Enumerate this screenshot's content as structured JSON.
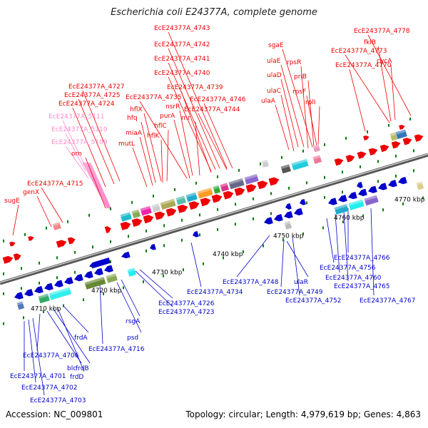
{
  "header": {
    "title": "Escherichia coli E24377A, complete genome"
  },
  "footer": {
    "accession": "Accession: NC_009801",
    "topology": "Topology: circular; Length: 4,979,619 bp; Genes: 4,863"
  },
  "colors": {
    "forward": "#ee0000",
    "reverse": "#0000cc",
    "pseudo": "#ff88cc",
    "backbone": "#8a8a8a",
    "ticks": "#0a7a0a"
  },
  "axis": {
    "ticks": [
      {
        "label": "4710 kbp"
      },
      {
        "label": "4720 kbp"
      },
      {
        "label": "4730 kbp"
      },
      {
        "label": "4740 kbp"
      },
      {
        "label": "4750 kbp"
      },
      {
        "label": "4760 kbp"
      },
      {
        "label": "4770 kbp"
      }
    ]
  },
  "labels": {
    "forward": [
      "sugE",
      "genX",
      "EcE24377A_4715",
      "orn",
      "EcE24377A_5111",
      "EcE24377A_5110",
      "EcE24377A_5109",
      "EcE24377A_4724",
      "EcE24377A_4725",
      "EcE24377A_4727",
      "mutL",
      "miaA",
      "hflK",
      "hflC",
      "hfq",
      "hflX",
      "purA",
      "nsrR",
      "rnr",
      "EcE24377A_4735",
      "EcE24377A_4739",
      "EcE24377A_4740",
      "EcE24377A_4741",
      "EcE24377A_4742",
      "EcE24377A_4743",
      "EcE24377A_4744",
      "EcE24377A_4746",
      "ulaA",
      "ulaC",
      "ulaD",
      "ulaE",
      "sgaE",
      "rpsF",
      "priB",
      "rpsR",
      "rplI",
      "EcE24377A_4770",
      "EcE24377A_4773",
      "cycA",
      "fklB",
      "EcE24377A_4778"
    ],
    "reverse": [
      "EcE24377A_4701",
      "EcE24377A_4702",
      "EcE24377A_4703",
      "EcE24377A_4706",
      "blc",
      "frdB",
      "frdD",
      "frdA",
      "EcE24377A_4716",
      "psd",
      "rsgA",
      "EcE24377A_4723",
      "EcE24377A_4726",
      "EcE24377A_4734",
      "EcE24377A_4748",
      "EcE24377A_4749",
      "ulaR",
      "EcE24377A_4752",
      "EcE24377A_4756",
      "EcE24377A_4760",
      "EcE24377A_4765",
      "EcE24377A_4766",
      "EcE24377A_4767"
    ]
  }
}
